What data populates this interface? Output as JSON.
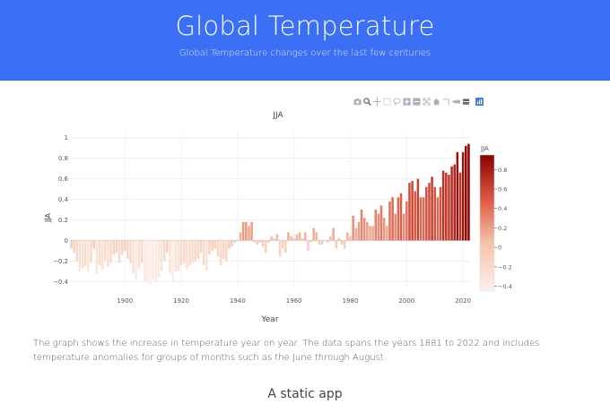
{
  "header": {
    "title": "Global Temperature",
    "subtitle": "Global Temperature changes over the last few centuries"
  },
  "colors": {
    "header_bg": "#3b6ff5",
    "bar_low": "#fdf0ea",
    "bar_mid": "#f3c6b0",
    "bar_high": "#8b0000",
    "modebar_icon": "#a8b0bb"
  },
  "modebar": {
    "icons": [
      "camera-icon",
      "zoom-icon",
      "pan-icon",
      "box-select-icon",
      "lasso-icon",
      "zoom-in-icon",
      "zoom-out-icon",
      "autoscale-icon",
      "reset-axes-icon",
      "spike-lines-icon",
      "hover-closest-icon",
      "hover-compare-icon",
      "plotly-logo-icon"
    ]
  },
  "chart_data": {
    "type": "bar",
    "title": "JJA",
    "xlabel": "Year",
    "ylabel": "JJA",
    "xlim": [
      1881,
      2022
    ],
    "ylim": [
      -0.45,
      1.05
    ],
    "x_ticks": [
      1900,
      1920,
      1940,
      1960,
      1980,
      2000,
      2020
    ],
    "y_ticks": [
      -0.4,
      -0.2,
      0,
      0.2,
      0.4,
      0.6,
      0.8,
      1
    ],
    "y_tick_labels": [
      "−0.4",
      "−0.2",
      "0",
      "0.2",
      "0.4",
      "0.6",
      "0.8",
      "1"
    ],
    "colorbar": {
      "title": "JJA",
      "range": [
        -0.45,
        0.95
      ],
      "ticks": [
        0.8,
        0.6,
        0.4,
        0.2,
        0,
        -0.2,
        -0.4
      ],
      "tick_labels": [
        "0.8",
        "0.6",
        "0.4",
        "0.2",
        "0",
        "−0.2",
        "−0.4"
      ]
    },
    "start_year": 1881,
    "values": [
      -0.08,
      -0.12,
      -0.2,
      -0.3,
      -0.28,
      -0.25,
      -0.3,
      -0.22,
      -0.08,
      -0.32,
      -0.24,
      -0.28,
      -0.2,
      -0.26,
      -0.22,
      -0.14,
      -0.12,
      -0.22,
      -0.14,
      -0.1,
      -0.18,
      -0.22,
      -0.32,
      -0.38,
      -0.28,
      -0.22,
      -0.4,
      -0.42,
      -0.44,
      -0.38,
      -0.4,
      -0.36,
      -0.3,
      -0.2,
      -0.12,
      -0.32,
      -0.4,
      -0.3,
      -0.3,
      -0.24,
      -0.22,
      -0.28,
      -0.24,
      -0.22,
      -0.2,
      -0.18,
      -0.12,
      -0.24,
      -0.3,
      -0.14,
      -0.1,
      -0.08,
      -0.16,
      -0.24,
      -0.18,
      -0.2,
      -0.08,
      -0.06,
      -0.02,
      0.0,
      0.08,
      0.18,
      0.18,
      0.14,
      0.18,
      -0.02,
      -0.04,
      -0.02,
      -0.06,
      -0.12,
      -0.02,
      0.04,
      0.02,
      0.06,
      -0.16,
      -0.08,
      -0.12,
      0.08,
      0.04,
      0.02,
      0.06,
      0.08,
      0.02,
      0.08,
      -0.1,
      -0.02,
      0.12,
      0.08,
      -0.04,
      -0.04,
      0.0,
      -0.02,
      0.04,
      0.12,
      -0.08,
      0.02,
      -0.04,
      -0.08,
      0.08,
      0.04,
      0.24,
      0.12,
      0.18,
      0.3,
      0.22,
      0.18,
      0.14,
      0.14,
      0.3,
      0.26,
      0.34,
      0.22,
      0.14,
      0.38,
      0.42,
      0.26,
      0.42,
      0.46,
      0.26,
      0.38,
      0.56,
      0.58,
      0.48,
      0.6,
      0.42,
      0.42,
      0.52,
      0.56,
      0.62,
      0.52,
      0.42,
      0.52,
      0.68,
      0.66,
      0.64,
      0.72,
      0.74,
      0.86,
      0.66,
      0.86,
      0.92,
      0.94
    ]
  },
  "description": "The graph shows the increase in temperature year on year. The data spans the years 1881 to 2022 and includes temperature anomalies for groups of months such as the June through August.",
  "section_title": "A static app"
}
